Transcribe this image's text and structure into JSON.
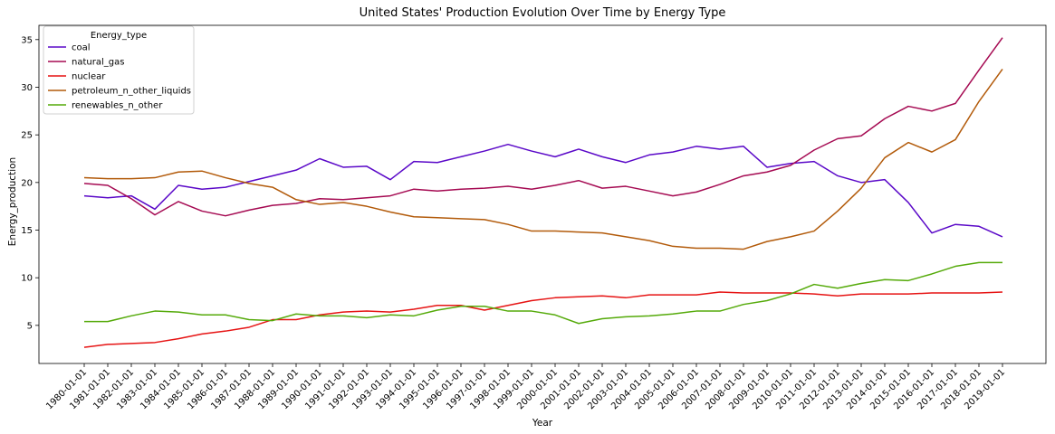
{
  "chart_data": {
    "type": "line",
    "title": "United States' Production Evolution Over Time by Energy Type",
    "xlabel": "Year",
    "ylabel": "Energy_production",
    "legend_title": "Energy_type",
    "legend_position": "upper-left",
    "grid": false,
    "ylim": [
      1.0,
      36.5
    ],
    "yticks": [
      5,
      10,
      15,
      20,
      25,
      30,
      35
    ],
    "x": [
      "1980-01-01",
      "1981-01-01",
      "1982-01-01",
      "1983-01-01",
      "1984-01-01",
      "1985-01-01",
      "1986-01-01",
      "1987-01-01",
      "1988-01-01",
      "1989-01-01",
      "1990-01-01",
      "1991-01-01",
      "1992-01-01",
      "1993-01-01",
      "1994-01-01",
      "1995-01-01",
      "1996-01-01",
      "1997-01-01",
      "1998-01-01",
      "1999-01-01",
      "2000-01-01",
      "2001-01-01",
      "2002-01-01",
      "2003-01-01",
      "2004-01-01",
      "2005-01-01",
      "2006-01-01",
      "2007-01-01",
      "2008-01-01",
      "2009-01-01",
      "2010-01-01",
      "2011-01-01",
      "2012-01-01",
      "2013-01-01",
      "2014-01-01",
      "2015-01-01",
      "2016-01-01",
      "2017-01-01",
      "2018-01-01",
      "2019-01-01"
    ],
    "series": [
      {
        "name": "coal",
        "color": "#5a08c8",
        "values": [
          18.6,
          18.4,
          18.6,
          17.2,
          19.7,
          19.3,
          19.5,
          20.1,
          20.7,
          21.3,
          22.5,
          21.6,
          21.7,
          20.3,
          22.2,
          22.1,
          22.7,
          23.3,
          24.0,
          23.3,
          22.7,
          23.5,
          22.7,
          22.1,
          22.9,
          23.2,
          23.8,
          23.5,
          23.8,
          21.6,
          22.0,
          22.2,
          20.7,
          20.0,
          20.3,
          17.9,
          14.7,
          15.6,
          15.4,
          14.3
        ]
      },
      {
        "name": "natural_gas",
        "color": "#a50a52",
        "values": [
          19.9,
          19.7,
          18.3,
          16.6,
          18.0,
          17.0,
          16.5,
          17.1,
          17.6,
          17.8,
          18.3,
          18.2,
          18.4,
          18.6,
          19.3,
          19.1,
          19.3,
          19.4,
          19.6,
          19.3,
          19.7,
          20.2,
          19.4,
          19.6,
          19.1,
          18.6,
          19.0,
          19.8,
          20.7,
          21.1,
          21.8,
          23.4,
          24.6,
          24.9,
          26.7,
          28.0,
          27.5,
          28.3,
          31.8,
          35.2
        ]
      },
      {
        "name": "nuclear",
        "color": "#e61414",
        "values": [
          2.7,
          3.0,
          3.1,
          3.2,
          3.6,
          4.1,
          4.4,
          4.8,
          5.6,
          5.6,
          6.1,
          6.4,
          6.5,
          6.4,
          6.7,
          7.1,
          7.1,
          6.6,
          7.1,
          7.6,
          7.9,
          8.0,
          8.1,
          7.9,
          8.2,
          8.2,
          8.2,
          8.5,
          8.4,
          8.4,
          8.4,
          8.3,
          8.1,
          8.3,
          8.3,
          8.3,
          8.4,
          8.4,
          8.4,
          8.5
        ]
      },
      {
        "name": "petroleum_n_other_liquids",
        "color": "#b25a0a",
        "values": [
          20.5,
          20.4,
          20.4,
          20.5,
          21.1,
          21.2,
          20.5,
          19.9,
          19.5,
          18.2,
          17.7,
          17.9,
          17.5,
          16.9,
          16.4,
          16.3,
          16.2,
          16.1,
          15.6,
          14.9,
          14.9,
          14.8,
          14.7,
          14.3,
          13.9,
          13.3,
          13.1,
          13.1,
          13.0,
          13.8,
          14.3,
          14.9,
          17.0,
          19.4,
          22.6,
          24.2,
          23.2,
          24.5,
          28.5,
          31.9
        ]
      },
      {
        "name": "renewables_n_other",
        "color": "#55aa0a",
        "values": [
          5.4,
          5.4,
          6.0,
          6.5,
          6.4,
          6.1,
          6.1,
          5.6,
          5.5,
          6.2,
          6.0,
          6.0,
          5.8,
          6.1,
          6.0,
          6.6,
          7.0,
          7.0,
          6.5,
          6.5,
          6.1,
          5.2,
          5.7,
          5.9,
          6.0,
          6.2,
          6.5,
          6.5,
          7.2,
          7.6,
          8.3,
          9.3,
          8.9,
          9.4,
          9.8,
          9.7,
          10.4,
          11.2,
          11.6,
          11.6
        ]
      }
    ]
  }
}
